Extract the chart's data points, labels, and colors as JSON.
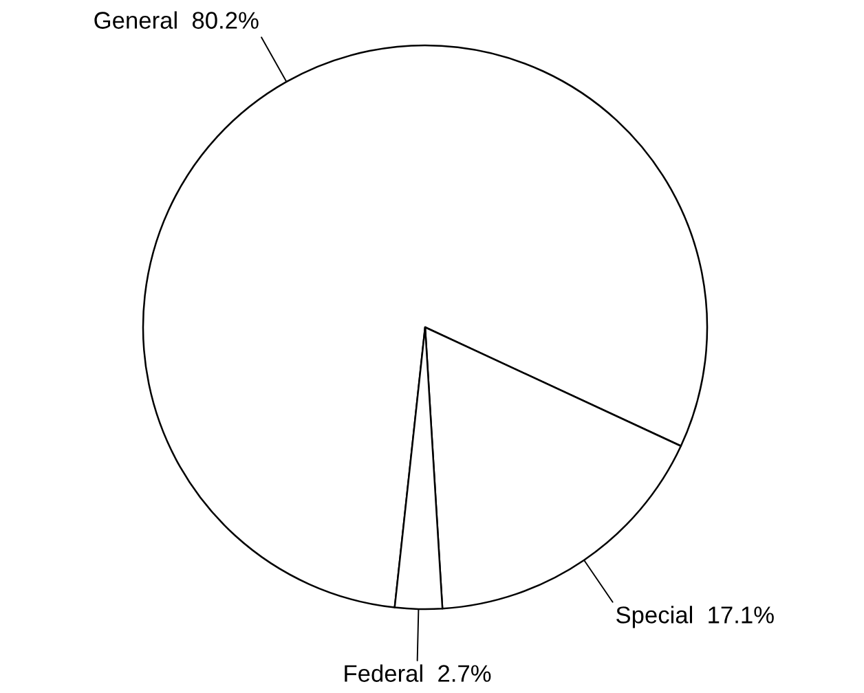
{
  "chart_data": {
    "type": "pie",
    "categories": [
      "General",
      "Special",
      "Federal"
    ],
    "values": [
      80.2,
      17.1,
      2.7
    ],
    "colors": [
      "#ffffff",
      "#ffffff",
      "#ffffff"
    ],
    "value_labels": [
      "80.2%",
      "17.1%",
      "2.7%"
    ]
  }
}
